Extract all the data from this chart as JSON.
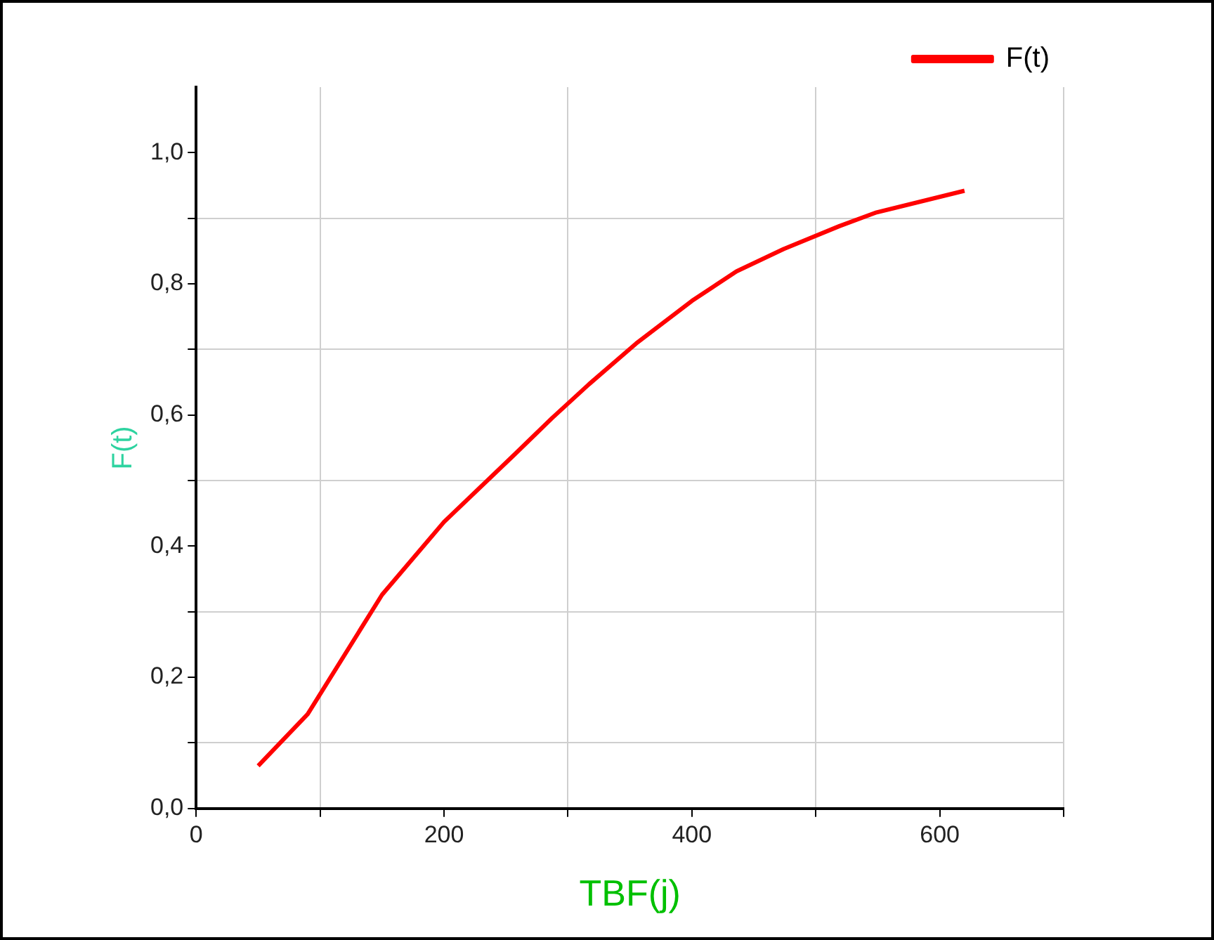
{
  "chart_data": {
    "type": "line",
    "xlabel": "TBF(j)",
    "ylabel": "F(t)",
    "x": [
      50,
      90,
      150,
      200,
      257,
      287,
      317,
      355,
      400,
      436,
      474,
      519,
      549,
      620
    ],
    "series": [
      {
        "name": "F(t)",
        "color": "#ff0000",
        "values": [
          0.065,
          0.144,
          0.326,
          0.437,
          0.54,
          0.595,
          0.647,
          0.709,
          0.774,
          0.819,
          0.853,
          0.888,
          0.909,
          0.942
        ]
      }
    ],
    "xlim": [
      0,
      700
    ],
    "xticks": [
      0,
      {
        "value": 100,
        "label": null
      },
      200,
      {
        "value": 300,
        "label": null
      },
      400,
      {
        "value": 500,
        "label": null
      },
      600,
      {
        "value": 700,
        "label": null
      }
    ],
    "ylim": [
      0,
      1.1
    ],
    "yticks": [
      {
        "value": 0,
        "label": "0,0"
      },
      {
        "value": 0.1,
        "label": null
      },
      {
        "value": 0.2,
        "label": "0,2"
      },
      {
        "value": 0.3,
        "label": null
      },
      {
        "value": 0.4,
        "label": "0,4"
      },
      {
        "value": 0.5,
        "label": null
      },
      {
        "value": 0.6,
        "label": "0,6"
      },
      {
        "value": 0.7,
        "label": null
      },
      {
        "value": 0.8,
        "label": "0,8"
      },
      {
        "value": 0.9,
        "label": null
      },
      {
        "value": 1.0,
        "label": "1,0"
      }
    ],
    "grid": true,
    "legend": "top right",
    "marker": "none",
    "line_style": "solid"
  }
}
